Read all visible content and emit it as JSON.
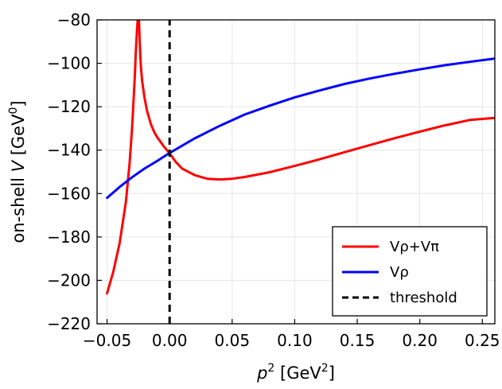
{
  "chart_data": {
    "type": "line",
    "title": "",
    "xlabel": {
      "main": "p",
      "sup": "2",
      "unit_pre": " [GeV",
      "unit_sup": "2",
      "unit_post": "]"
    },
    "ylabel": {
      "pre": "on-shell ",
      "var": "V",
      "unit_pre": " [GeV",
      "unit_sup": "0",
      "unit_post": "]"
    },
    "xlim": [
      -0.058,
      0.26
    ],
    "ylim": [
      -220,
      -80
    ],
    "grid": true,
    "legend_position": "bottom-right",
    "x_ticks": [
      -0.05,
      0.0,
      0.05,
      0.1,
      0.15,
      0.2,
      0.25
    ],
    "x_tick_labels": [
      "−0.05",
      "0.00",
      "0.05",
      "0.10",
      "0.15",
      "0.20",
      "0.25"
    ],
    "y_ticks": [
      -220,
      -200,
      -180,
      -160,
      -140,
      -120,
      -100,
      -80
    ],
    "y_tick_labels": [
      "−220",
      "−200",
      "−180",
      "−160",
      "−140",
      "−120",
      "−100",
      "−80"
    ],
    "series": [
      {
        "name": "Vρ+Vπ",
        "color": "#ff0000",
        "style": "solid",
        "segments": [
          {
            "x": [
              -0.05,
              -0.045,
              -0.04,
              -0.035,
              -0.032,
              -0.03,
              -0.028,
              -0.027,
              -0.026,
              -0.0255
            ],
            "y": [
              -206,
              -196,
              -183,
              -164,
              -146,
              -130,
              -108,
              -95,
              -84,
              -80
            ]
          },
          {
            "x": [
              -0.0245,
              -0.024,
              -0.023,
              -0.022,
              -0.02,
              -0.018,
              -0.015,
              -0.012,
              -0.01,
              -0.005,
              0.0,
              0.005,
              0.01,
              0.02,
              0.03,
              0.04,
              0.05,
              0.06,
              0.08,
              0.1,
              0.12,
              0.15,
              0.18,
              0.2,
              0.22,
              0.24,
              0.26
            ],
            "y": [
              -80,
              -89,
              -101,
              -108,
              -116,
              -122,
              -128,
              -132,
              -134,
              -138,
              -141.5,
              -145.5,
              -148.5,
              -151.5,
              -153.2,
              -153.5,
              -153.2,
              -152.4,
              -150.2,
              -147.3,
              -144.2,
              -139.3,
              -134.5,
              -131.5,
              -128.6,
              -126.1,
              -125.2
            ]
          }
        ]
      },
      {
        "name": "Vρ",
        "color": "#0000ff",
        "style": "solid",
        "segments": [
          {
            "x": [
              -0.05,
              -0.04,
              -0.03,
              -0.02,
              -0.01,
              0.0,
              0.02,
              0.04,
              0.06,
              0.08,
              0.1,
              0.12,
              0.14,
              0.16,
              0.18,
              0.2,
              0.22,
              0.24,
              0.26
            ],
            "y": [
              -162,
              -157,
              -152.5,
              -148.5,
              -145,
              -141.3,
              -134.6,
              -128.8,
              -123.6,
              -119.5,
              -115.7,
              -112.5,
              -109.5,
              -107,
              -104.8,
              -102.8,
              -100.9,
              -99.3,
              -97.8
            ]
          }
        ]
      },
      {
        "name": "threshold",
        "color": "#000000",
        "style": "dashed",
        "segments": [
          {
            "x": [
              0.0,
              0.0
            ],
            "y": [
              -220,
              -80
            ]
          }
        ]
      }
    ]
  }
}
